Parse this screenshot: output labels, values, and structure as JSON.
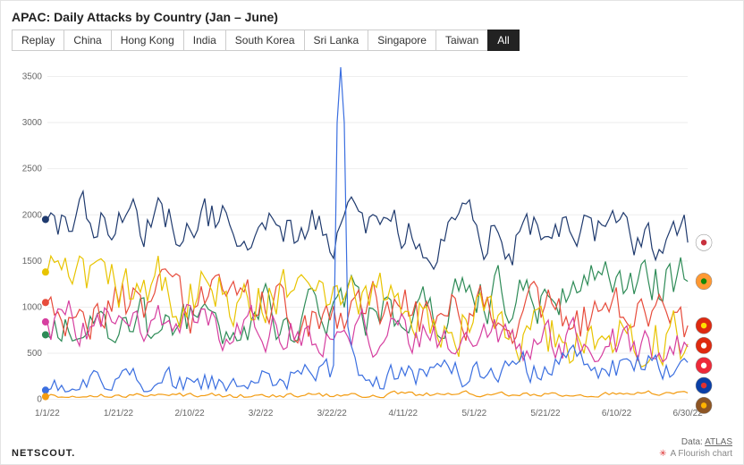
{
  "title": "APAC: Daily Attacks by Country (Jan – June)",
  "tabs": [
    {
      "label": "Replay",
      "active": false
    },
    {
      "label": "China",
      "active": false
    },
    {
      "label": "Hong Kong",
      "active": false
    },
    {
      "label": "India",
      "active": false
    },
    {
      "label": "South Korea",
      "active": false
    },
    {
      "label": "Sri Lanka",
      "active": false
    },
    {
      "label": "Singapore",
      "active": false
    },
    {
      "label": "Taiwan",
      "active": false
    },
    {
      "label": "All",
      "active": true
    }
  ],
  "chart": {
    "type": "line",
    "background_color": "#ffffff",
    "grid_color": "#eeeeee",
    "axis_text_color": "#666666",
    "axis_fontsize": 10,
    "ylim": [
      0,
      3600
    ],
    "yticks": [
      0,
      500,
      1000,
      1500,
      2000,
      2500,
      3000,
      3500
    ],
    "xlabels": [
      "1/1/22",
      "1/21/22",
      "2/10/22",
      "3/2/22",
      "3/22/22",
      "4/11/22",
      "5/1/22",
      "5/21/22",
      "6/10/22",
      "6/30/22"
    ],
    "n_points": 180,
    "line_width": 1.2,
    "series": [
      {
        "name": "South Korea",
        "color": "#1f3a6e",
        "flag_bg": "#ffffff",
        "flag_fg": "#c8313e",
        "start": 1950,
        "end": 1700,
        "min": 1300,
        "max": 2550,
        "noise": 220,
        "spike_i": null,
        "spike_v": null
      },
      {
        "name": "India",
        "color": "#2e8b57",
        "flag_bg": "#ff9933",
        "flag_fg": "#138808",
        "start": 700,
        "end": 1280,
        "min": 600,
        "max": 1950,
        "noise": 260,
        "spike_i": null,
        "spike_v": null
      },
      {
        "name": "China",
        "color": "#e74c3c",
        "flag_bg": "#de2910",
        "flag_fg": "#ffde00",
        "start": 1050,
        "end": 800,
        "min": 600,
        "max": 1800,
        "noise": 260,
        "spike_i": null,
        "spike_v": null
      },
      {
        "name": "Hong Kong",
        "color": "#e8c400",
        "flag_bg": "#de2910",
        "flag_fg": "#ffffff",
        "start": 1380,
        "end": 600,
        "min": 350,
        "max": 1700,
        "noise": 280,
        "spike_i": null,
        "spike_v": null
      },
      {
        "name": "Singapore",
        "color": "#d63fa0",
        "flag_bg": "#ed2939",
        "flag_fg": "#ffffff",
        "start": 840,
        "end": 570,
        "min": 400,
        "max": 1400,
        "noise": 200,
        "spike_i": null,
        "spike_v": null
      },
      {
        "name": "Taiwan",
        "color": "#3b6fe0",
        "flag_bg": "#0a3fa6",
        "flag_fg": "#e03131",
        "start": 100,
        "end": 400,
        "min": 80,
        "max": 800,
        "noise": 140,
        "spike_i": 82,
        "spike_v": 3600
      },
      {
        "name": "Sri Lanka",
        "color": "#f39c12",
        "flag_bg": "#8d5524",
        "flag_fg": "#ffb300",
        "start": 30,
        "end": 70,
        "min": 20,
        "max": 130,
        "noise": 25,
        "spike_i": null,
        "spike_v": null
      }
    ]
  },
  "footer": {
    "brand": "NETSCOUT.",
    "data_label": "Data:",
    "data_source": "ATLAS",
    "credit": "A Flourish chart"
  }
}
